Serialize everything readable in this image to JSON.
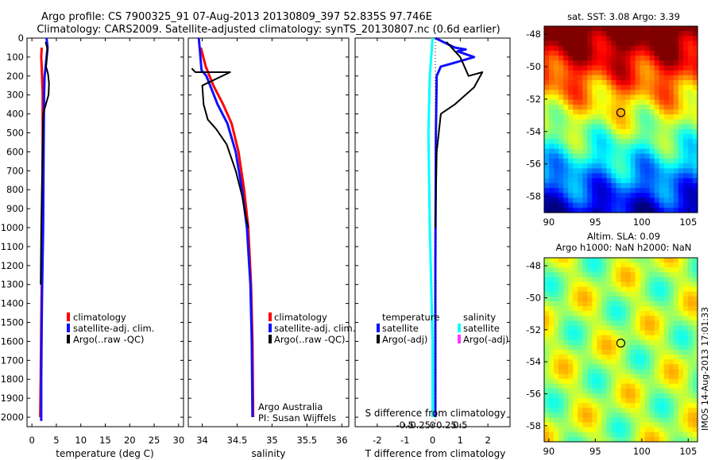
{
  "title": {
    "line1": "Argo profile: CS 7900325_91 07-Aug-2013 20130809_397 52.835S 97.746E",
    "line2": "Climatology: CARS2009. Satellite-adjusted climatology: synTS_20130807.nc (0.6d earlier)"
  },
  "watermark": "IMOS 14-Aug-2013 17:01:33",
  "colors": {
    "climatology": "#ff0000",
    "satellite_adj": "#1010ff",
    "argo": "#000000",
    "satellite_diff_t": "#00ffff",
    "argo_adj_s": "#ff33ff"
  },
  "chart_data": [
    {
      "id": "temperature",
      "type": "line",
      "xlabel": "temperature (deg C)",
      "ylabel": "",
      "xlim": [
        -1,
        31
      ],
      "ylim": [
        2050,
        0
      ],
      "xticks": [
        0,
        5,
        10,
        15,
        20,
        25,
        30
      ],
      "yticks": [
        0,
        100,
        200,
        300,
        400,
        500,
        600,
        700,
        800,
        900,
        1000,
        1100,
        1200,
        1300,
        1400,
        1500,
        1600,
        1700,
        1800,
        1900,
        2000
      ],
      "legend_position": "lower-middle",
      "series": [
        {
          "name": "climatology",
          "color": "#ff0000",
          "x": [
            2.0,
            1.9,
            2.0,
            2.2,
            2.2,
            2.1,
            2.0,
            1.9,
            1.8,
            1.7
          ],
          "y": [
            50,
            100,
            150,
            300,
            600,
            1000,
            1300,
            1500,
            1800,
            2000
          ]
        },
        {
          "name": "satellite-adj. clim.",
          "color": "#1010ff",
          "x": [
            3.0,
            3.2,
            2.6,
            2.5,
            2.4,
            2.3,
            2.1,
            2.0,
            1.9,
            1.9
          ],
          "y": [
            0,
            50,
            200,
            300,
            600,
            1000,
            1300,
            1500,
            1800,
            2020
          ]
        },
        {
          "name": "Argo(..raw -QC)",
          "color": "#000000",
          "x": [
            2.8,
            3.2,
            2.9,
            3.3,
            3.5,
            3.4,
            2.3,
            2.1,
            1.9,
            1.8
          ],
          "y": [
            20,
            60,
            150,
            190,
            240,
            300,
            400,
            700,
            1000,
            1300
          ]
        }
      ]
    },
    {
      "id": "salinity",
      "type": "line",
      "xlabel": "salinity",
      "ylabel": "",
      "xlim": [
        33.8,
        36.1
      ],
      "ylim": [
        2050,
        0
      ],
      "xticks": [
        34,
        34.5,
        35,
        35.5,
        36
      ],
      "legend_position": "lower-middle",
      "annotation": [
        "Argo Australia",
        "PI: Susan Wijffels"
      ],
      "series": [
        {
          "name": "climatology",
          "color": "#ff0000",
          "x": [
            33.98,
            34.05,
            34.16,
            34.3,
            34.42,
            34.52,
            34.6,
            34.66,
            34.7,
            34.72,
            34.73
          ],
          "y": [
            50,
            150,
            250,
            350,
            450,
            600,
            800,
            1000,
            1300,
            1600,
            2000
          ]
        },
        {
          "name": "satellite-adj. clim.",
          "color": "#1010ff",
          "x": [
            33.95,
            33.97,
            33.99,
            34.06,
            34.22,
            34.36,
            34.48,
            34.57,
            34.64,
            34.69,
            34.71,
            34.72
          ],
          "y": [
            0,
            80,
            170,
            200,
            350,
            450,
            600,
            800,
            1000,
            1300,
            1600,
            2000
          ]
        },
        {
          "name": "Argo(..raw -QC)",
          "color": "#000000",
          "x": [
            33.85,
            33.9,
            34.4,
            34.0,
            34.02,
            34.08,
            34.2,
            34.35,
            34.48,
            34.57,
            34.62,
            34.66
          ],
          "y": [
            160,
            180,
            180,
            250,
            350,
            430,
            480,
            560,
            700,
            830,
            930,
            1000
          ]
        }
      ]
    },
    {
      "id": "difference",
      "type": "line",
      "xlabel": "T difference from climatology",
      "xlabel_top": "S difference from climatology",
      "ylabel": "",
      "xlim": [
        -2.8,
        2.8
      ],
      "ylim": [
        2050,
        0
      ],
      "xticks": [
        -2,
        -1,
        0,
        1,
        2
      ],
      "s_ticks": [
        "-0.5",
        "-0.25",
        "0",
        "0.25",
        "0.5"
      ],
      "legend_position": "lower",
      "legend_groups": [
        "temperature",
        "salinity"
      ],
      "series": [
        {
          "name": "temperature satellite",
          "color": "#1010ff",
          "x": [
            0.1,
            0.8,
            1.2,
            0.9,
            1.5,
            0.8,
            0.3,
            0.15,
            0.12,
            0.1,
            0.1
          ],
          "y": [
            0,
            50,
            60,
            70,
            100,
            130,
            150,
            200,
            500,
            1200,
            2000
          ]
        },
        {
          "name": "temperature Argo(-adj)",
          "color": "#000000",
          "x": [
            0.5,
            1.0,
            1.3,
            1.8,
            1.5,
            0.8,
            0.3,
            0.15,
            0.1
          ],
          "y": [
            20,
            100,
            200,
            180,
            260,
            350,
            400,
            600,
            1000
          ]
        },
        {
          "name": "salinity satellite",
          "color": "#00ffff",
          "x": [
            0,
            -0.1,
            -0.15,
            -0.1,
            -0.05,
            0,
            0
          ],
          "y": [
            0,
            200,
            500,
            1000,
            1300,
            1600,
            2000
          ]
        },
        {
          "name": "salinity Argo(-adj)",
          "color": "#ff33ff",
          "x": [],
          "y": []
        }
      ]
    },
    {
      "id": "sst_map",
      "type": "heatmap",
      "title": "sat. SST: 3.08 Argo: 3.39",
      "xlim": [
        89.5,
        106
      ],
      "ylim": [
        -59,
        -47.5
      ],
      "xticks": [
        90,
        95,
        100,
        105
      ],
      "yticks": [
        -48,
        -50,
        -52,
        -54,
        -56,
        -58
      ],
      "marker": {
        "lon": 97.746,
        "lat": -52.835
      }
    },
    {
      "id": "sla_map",
      "type": "heatmap",
      "title": "Altim. SLA: 0.09",
      "subtitle": "Argo h1000: NaN h2000: NaN",
      "xlim": [
        89.5,
        106
      ],
      "ylim": [
        -59,
        -47.5
      ],
      "xticks": [
        90,
        95,
        100,
        105
      ],
      "yticks": [
        -48,
        -50,
        -52,
        -54,
        -56,
        -58
      ],
      "marker": {
        "lon": 97.746,
        "lat": -52.835
      }
    }
  ]
}
